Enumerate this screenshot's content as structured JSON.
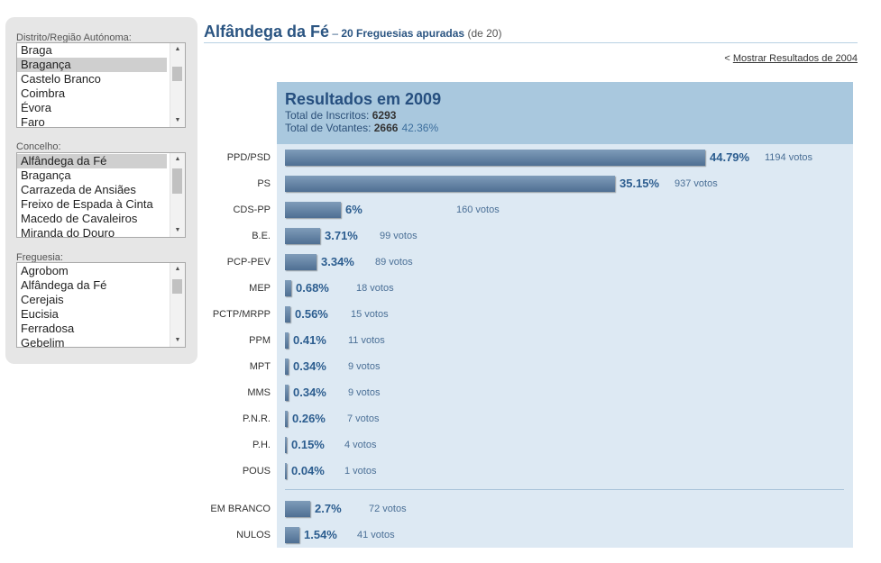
{
  "sidebar": {
    "distrito": {
      "label": "Distrito/Região Autónoma:",
      "items": [
        "Braga",
        "Bragança",
        "Castelo Branco",
        "Coimbra",
        "Évora",
        "Faro"
      ],
      "selected": 1
    },
    "concelho": {
      "label": "Concelho:",
      "items": [
        "Alfândega da Fé",
        "Bragança",
        "Carrazeda de Ansiães",
        "Freixo de Espada à Cinta",
        "Macedo de Cavaleiros",
        "Miranda do Douro"
      ],
      "selected": 0
    },
    "freguesia": {
      "label": "Freguesia:",
      "items": [
        "Agrobom",
        "Alfândega da Fé",
        "Cerejais",
        "Eucisia",
        "Ferradosa",
        "Gebelim"
      ],
      "selected": -1
    }
  },
  "header": {
    "title": "Alfândega da Fé",
    "dash": " – ",
    "sub_bold": "20 Freguesias apuradas",
    "sub_rest": " (de 20)",
    "prev_prefix": "< ",
    "prev_link": "Mostrar Resultados de 2004"
  },
  "results": {
    "title": "Resultados em 2009",
    "inscritos_label": "Total de Inscritos: ",
    "inscritos_value": "6293",
    "votantes_label": "Total de Votantes: ",
    "votantes_value": "2666",
    "votantes_pct": "42.36%"
  },
  "chart_data": {
    "type": "bar",
    "orientation": "horizontal",
    "title": "Resultados em 2009",
    "categories": [
      "PPD/PSD",
      "PS",
      "CDS-PP",
      "B.E.",
      "PCP-PEV",
      "MEP",
      "PCTP/MRPP",
      "PPM",
      "MPT",
      "MMS",
      "P.N.R.",
      "P.H.",
      "POUS"
    ],
    "values": [
      44.79,
      35.15,
      6,
      3.71,
      3.34,
      0.68,
      0.56,
      0.41,
      0.34,
      0.34,
      0.26,
      0.15,
      0.04
    ],
    "pct_labels": [
      "44.79%",
      "35.15%",
      "6%",
      "3.71%",
      "3.34%",
      "0.68%",
      "0.56%",
      "0.41%",
      "0.34%",
      "0.34%",
      "0.26%",
      "0.15%",
      "0.04%"
    ],
    "votes_labels": [
      "1194 votos",
      "937 votos",
      "160 votos",
      "99 votos",
      "89 votos",
      "18 votos",
      "15 votos",
      "11 votos",
      "9 votos",
      "9 votos",
      "7 votos",
      "4 votos",
      "1 votos"
    ],
    "extra": {
      "categories": [
        "EM BRANCO",
        "NULOS"
      ],
      "values": [
        2.7,
        1.54
      ],
      "pct_labels": [
        "2.7%",
        "1.54%"
      ],
      "votes_labels": [
        "72 votos",
        "41 votos"
      ]
    },
    "xlim": [
      0,
      100
    ]
  }
}
